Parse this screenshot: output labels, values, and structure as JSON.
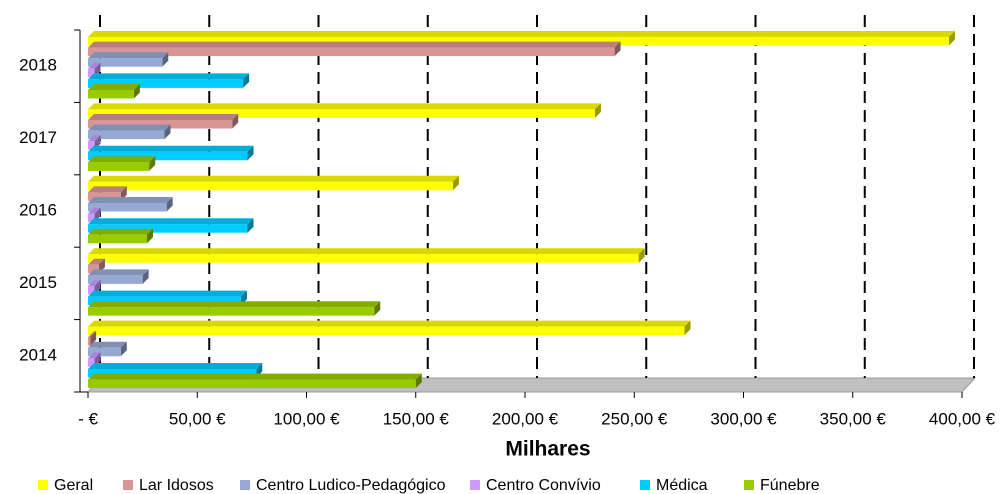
{
  "chart_data": {
    "type": "bar",
    "orientation": "horizontal",
    "x_label": "Milhares",
    "categories": [
      "2014",
      "2015",
      "2016",
      "2017",
      "2018"
    ],
    "series": [
      {
        "name": "Geral",
        "color": "#ffff00",
        "values": [
          273,
          252,
          167,
          232,
          394
        ]
      },
      {
        "name": "Lar Idosos",
        "color": "#d99594",
        "values": [
          1,
          5,
          15,
          66,
          241
        ]
      },
      {
        "name": "Centro Ludico-Pedagógico",
        "color": "#95a9d4",
        "values": [
          15,
          25,
          36,
          35,
          34
        ]
      },
      {
        "name": "Centro Convívio",
        "color": "#cc99ff",
        "values": [
          3,
          3,
          3,
          3,
          3
        ]
      },
      {
        "name": "Médica",
        "color": "#00ccff",
        "values": [
          77,
          70,
          73,
          73,
          71
        ]
      },
      {
        "name": "Fúnebre",
        "color": "#99cc00",
        "values": [
          150,
          131,
          27,
          28,
          21
        ]
      }
    ],
    "xlim": [
      0,
      400
    ],
    "xticks": [
      {
        "value": 0,
        "label": "-  €"
      },
      {
        "value": 50,
        "label": "50,00 €"
      },
      {
        "value": 100,
        "label": "100,00 €"
      },
      {
        "value": 150,
        "label": "150,00 €"
      },
      {
        "value": 200,
        "label": "200,00 €"
      },
      {
        "value": 250,
        "label": "250,00 €"
      },
      {
        "value": 300,
        "label": "300,00 €"
      },
      {
        "value": 350,
        "label": "350,00 €"
      },
      {
        "value": 400,
        "label": "400,00 €"
      }
    ],
    "grid": true,
    "legend": "bottom"
  }
}
